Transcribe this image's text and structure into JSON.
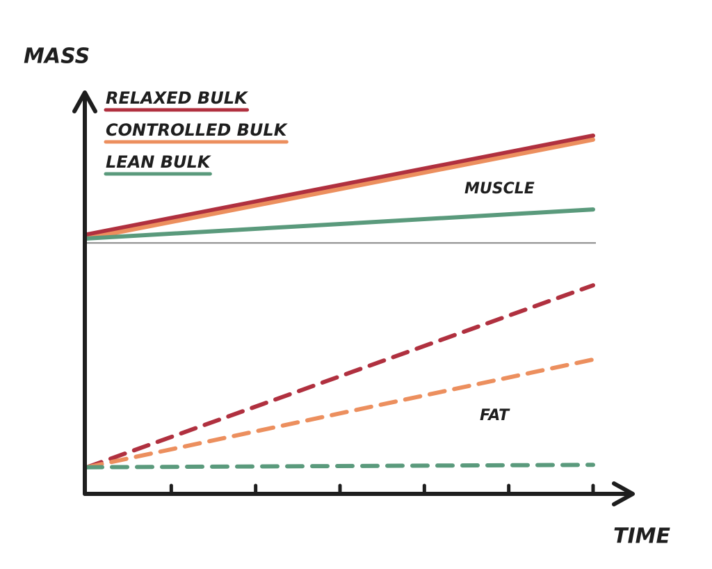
{
  "chart_data": {
    "type": "line",
    "y_label": "MASS",
    "x_label": "TIME",
    "x": [
      0,
      6
    ],
    "xlim": [
      0,
      6
    ],
    "xticks": [
      1,
      2,
      3,
      4,
      5,
      6
    ],
    "ylim": [
      0,
      100
    ],
    "reference_line": 62.2,
    "annotations": [
      "MUSCLE",
      "FAT"
    ],
    "series": [
      {
        "name": "RELAXED BULK",
        "color": "#b0303f",
        "muscle": [
          64.3,
          88.8
        ],
        "fat": [
          6.6,
          51.7
        ]
      },
      {
        "name": "CONTROLLED BULK",
        "color": "#ec8f5e",
        "muscle": [
          63.3,
          87.8
        ],
        "fat": [
          6.6,
          33.3
        ]
      },
      {
        "name": "LEAN BULK",
        "color": "#5a9a7c",
        "muscle": [
          63.3,
          70.5
        ],
        "fat": [
          6.6,
          7.2
        ]
      }
    ]
  }
}
